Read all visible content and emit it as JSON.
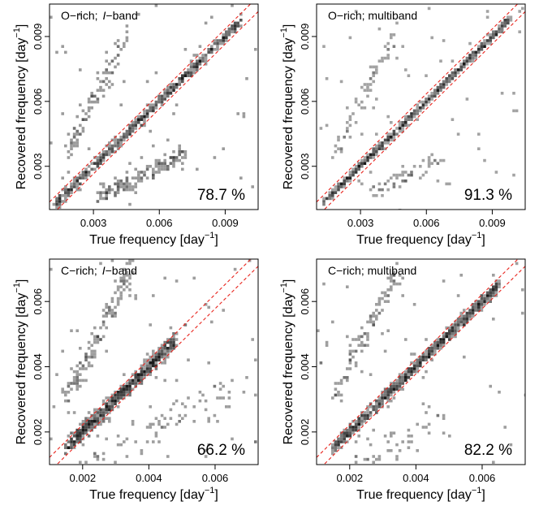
{
  "figure": {
    "panels": [
      {
        "panel_label": "O−rich;",
        "band_italic": "I",
        "band_suffix": "−band",
        "percentage": "78.7 %",
        "xlabel_text": "True frequency [day",
        "ylabel_text": "Recovered frequency [day",
        "unit_exponent": "−1"
      },
      {
        "panel_label": "O−rich; multiband",
        "band_italic": "",
        "band_suffix": "",
        "percentage": "91.3 %",
        "xlabel_text": "True frequency [day",
        "ylabel_text": "Recovered frequency [day",
        "unit_exponent": "−1"
      },
      {
        "panel_label": "C−rich;",
        "band_italic": "I",
        "band_suffix": "−band",
        "percentage": "66.2 %",
        "xlabel_text": "True frequency [day",
        "ylabel_text": "Recovered frequency [day",
        "unit_exponent": "−1"
      },
      {
        "panel_label": "C−rich; multiband",
        "band_italic": "",
        "band_suffix": "",
        "percentage": "82.2 %",
        "xlabel_text": "True frequency [day",
        "ylabel_text": "Recovered frequency [day",
        "unit_exponent": "−1"
      }
    ]
  },
  "chart_data": [
    {
      "type": "heatmap",
      "title": "",
      "xlabel": "True frequency [day⁻¹]",
      "ylabel": "Recovered frequency [day⁻¹]",
      "xlim": [
        0.001,
        0.0105
      ],
      "ylim": [
        0.001,
        0.0105
      ],
      "xticks": [
        0.003,
        0.006,
        0.009
      ],
      "yticks": [
        0.003,
        0.006,
        0.009
      ],
      "xtick_labels": [
        "0.003",
        "0.006",
        "0.009"
      ],
      "ytick_labels": [
        "0.003",
        "0.006",
        "0.009"
      ],
      "reference_lines": [
        {
          "slope": 1,
          "intercept": 0.00035,
          "color": "#e8231c",
          "style": "dashed"
        },
        {
          "slope": 1,
          "intercept": -0.00035,
          "color": "#e8231c",
          "style": "dashed"
        }
      ],
      "clusters": [
        {
          "x": [
            0.0013,
            0.0098
          ],
          "y_offset": 0.0,
          "spread": 0.00012,
          "count": 520
        },
        {
          "x": [
            0.0032,
            0.0072
          ],
          "y_ratio": 0.5,
          "spread": 0.00022,
          "count": 150
        },
        {
          "x": [
            0.0018,
            0.0045
          ],
          "y_ratio": 2.0,
          "spread": 0.00035,
          "count": 95
        }
      ],
      "annotation": "78.7 %"
    },
    {
      "type": "heatmap",
      "title": "",
      "xlabel": "True frequency [day⁻¹]",
      "ylabel": "Recovered frequency [day⁻¹]",
      "xlim": [
        0.001,
        0.0105
      ],
      "ylim": [
        0.001,
        0.0105
      ],
      "xticks": [
        0.003,
        0.006,
        0.009
      ],
      "yticks": [
        0.003,
        0.006,
        0.009
      ],
      "xtick_labels": [
        "0.003",
        "0.006",
        "0.009"
      ],
      "ytick_labels": [
        "0.003",
        "0.006",
        "0.009"
      ],
      "reference_lines": [
        {
          "slope": 1,
          "intercept": 0.00035,
          "color": "#e8231c",
          "style": "dashed"
        },
        {
          "slope": 1,
          "intercept": -0.00035,
          "color": "#e8231c",
          "style": "dashed"
        }
      ],
      "clusters": [
        {
          "x": [
            0.0013,
            0.0098
          ],
          "y_offset": 0.0,
          "spread": 8e-05,
          "count": 620
        },
        {
          "x": [
            0.0035,
            0.0065
          ],
          "y_ratio": 0.5,
          "spread": 0.0002,
          "count": 55
        },
        {
          "x": [
            0.0018,
            0.0045
          ],
          "y_ratio": 2.0,
          "spread": 0.0003,
          "count": 60
        }
      ],
      "annotation": "91.3 %"
    },
    {
      "type": "heatmap",
      "title": "",
      "xlabel": "True frequency [day⁻¹]",
      "ylabel": "Recovered frequency [day⁻¹]",
      "xlim": [
        0.001,
        0.0073
      ],
      "ylim": [
        0.001,
        0.0073
      ],
      "xticks": [
        0.002,
        0.004,
        0.006
      ],
      "yticks": [
        0.002,
        0.004,
        0.006
      ],
      "xtick_labels": [
        "0.002",
        "0.004",
        "0.006"
      ],
      "ytick_labels": [
        "0.002",
        "0.004",
        "0.006"
      ],
      "reference_lines": [
        {
          "slope": 1,
          "intercept": 0.00022,
          "color": "#e8231c",
          "style": "dashed"
        },
        {
          "slope": 1,
          "intercept": -0.00022,
          "color": "#e8231c",
          "style": "dashed"
        }
      ],
      "clusters": [
        {
          "x": [
            0.0015,
            0.0048
          ],
          "y_offset": 0.0,
          "spread": 0.00012,
          "count": 650
        },
        {
          "x": [
            0.0015,
            0.0035
          ],
          "y_ratio": 2.0,
          "spread": 0.00022,
          "count": 140
        },
        {
          "x": [
            0.0015,
            0.0065
          ],
          "y_ratio": 0.5,
          "spread": 0.0003,
          "count": 90
        }
      ],
      "annotation": "66.2 %"
    },
    {
      "type": "heatmap",
      "title": "",
      "xlabel": "True frequency [day⁻¹]",
      "ylabel": "Recovered frequency [day⁻¹]",
      "xlim": [
        0.001,
        0.0073
      ],
      "ylim": [
        0.001,
        0.0073
      ],
      "xticks": [
        0.002,
        0.004,
        0.006
      ],
      "yticks": [
        0.002,
        0.004,
        0.006
      ],
      "xtick_labels": [
        "0.002",
        "0.004",
        "0.006"
      ],
      "ytick_labels": [
        "0.002",
        "0.004",
        "0.006"
      ],
      "reference_lines": [
        {
          "slope": 1,
          "intercept": 0.00022,
          "color": "#e8231c",
          "style": "dashed"
        },
        {
          "slope": 1,
          "intercept": -0.00022,
          "color": "#e8231c",
          "style": "dashed"
        }
      ],
      "clusters": [
        {
          "x": [
            0.0015,
            0.0065
          ],
          "y_offset": 0.0,
          "spread": 9e-05,
          "count": 720
        },
        {
          "x": [
            0.0015,
            0.0035
          ],
          "y_ratio": 2.0,
          "spread": 0.0002,
          "count": 95
        },
        {
          "x": [
            0.002,
            0.005
          ],
          "y_ratio": 0.5,
          "spread": 0.0003,
          "count": 40
        }
      ],
      "annotation": "82.2 %"
    }
  ]
}
